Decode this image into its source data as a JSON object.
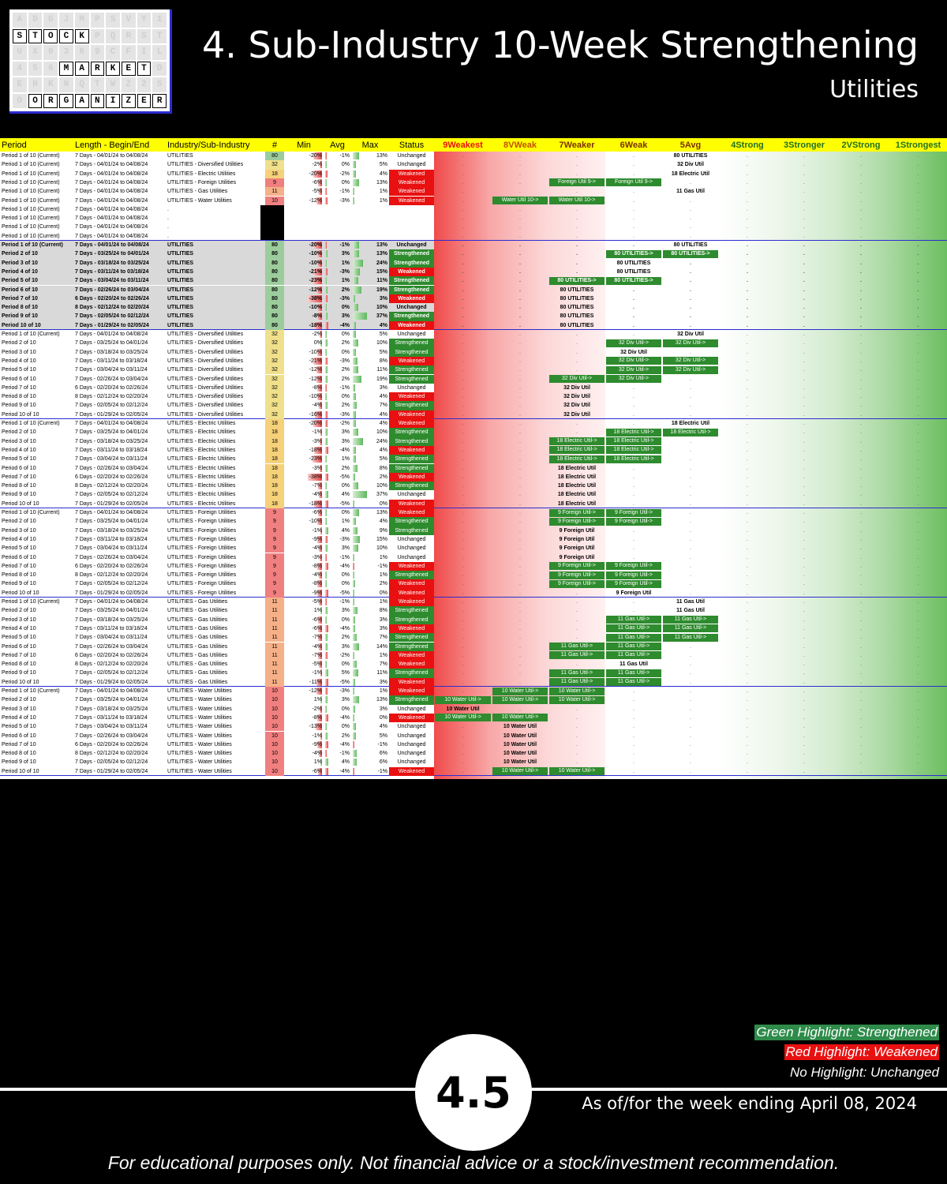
{
  "logo": {
    "words": [
      "STOCK",
      "MARKET",
      "ORGANIZER"
    ]
  },
  "header": {
    "title": "4. Sub-Industry 10-Week Strengthening",
    "subtitle": "Utilities"
  },
  "table": {
    "columns": [
      "Period",
      "Length - Begin/End",
      "Industry/Sub-Industry",
      "#",
      "Min",
      "Avg",
      "Max",
      "Status",
      "9Weakest",
      "8VWeak",
      "7Weaker",
      "6Weak",
      "5Avg",
      "4Strong",
      "3Stronger",
      "2VStrong",
      "1Strongest"
    ],
    "summary_rows": [
      [
        "Period 1 of 10 (Current)",
        "7 Days - 04/01/24 to 04/08/24",
        "UTILITIES",
        "80",
        "-20%",
        "-1%",
        "13%",
        "Unchanged"
      ],
      [
        "Period 1 of 10 (Current)",
        "7 Days - 04/01/24 to 04/08/24",
        "UTILITIES - Diversified Utilities",
        "32",
        "-2%",
        "0%",
        "5%",
        "Unchanged"
      ],
      [
        "Period 1 of 10 (Current)",
        "7 Days - 04/01/24 to 04/08/24",
        "UTILITIES - Electric Utilities",
        "18",
        "-20%",
        "-2%",
        "4%",
        "Weakened"
      ],
      [
        "Period 1 of 10 (Current)",
        "7 Days - 04/01/24 to 04/08/24",
        "UTILITIES - Foreign Utilities",
        "9",
        "-6%",
        "0%",
        "13%",
        "Weakened"
      ],
      [
        "Period 1 of 10 (Current)",
        "7 Days - 04/01/24 to 04/08/24",
        "UTILITIES - Gas Utilities",
        "11",
        "-5%",
        "-1%",
        "1%",
        "Weakened"
      ],
      [
        "Period 1 of 10 (Current)",
        "7 Days - 04/01/24 to 04/08/24",
        "UTILITIES - Water Utilities",
        "10",
        "-12%",
        "-3%",
        "1%",
        "Weakened"
      ]
    ],
    "empty_rows_label": [
      "Period 1 of 10 (Current)",
      "7 Days - 04/01/24 to 04/08/24",
      "."
    ],
    "groups": [
      {
        "name": "UTILITIES",
        "count": "80",
        "tag_label": "80 UTILITIES",
        "rows": [
          [
            "Period 1 of 10 (Current)",
            "7 Days - 04/01/24 to 04/08/24",
            "-20%",
            "-1%",
            "13%",
            "Unchanged"
          ],
          [
            "Period 2 of 10",
            "7 Days - 03/25/24 to 04/01/24",
            "-10%",
            "3%",
            "13%",
            "Strengthened"
          ],
          [
            "Period 3 of 10",
            "7 Days - 03/18/24 to 03/25/24",
            "-10%",
            "1%",
            "24%",
            "Strengthened"
          ],
          [
            "Period 4 of 10",
            "7 Days - 03/11/24 to 03/18/24",
            "-21%",
            "-3%",
            "15%",
            "Weakened"
          ],
          [
            "Period 5 of 10",
            "7 Days - 03/04/24 to 03/11/24",
            "-23%",
            "1%",
            "11%",
            "Strengthened"
          ],
          [
            "Period 6 of 10",
            "7 Days - 02/26/24 to 03/04/24",
            "-12%",
            "2%",
            "19%",
            "Strengthened"
          ],
          [
            "Period 7 of 10",
            "6 Days - 02/20/24 to 02/26/24",
            "-38%",
            "-3%",
            "3%",
            "Weakened"
          ],
          [
            "Period 8 of 10",
            "8 Days - 02/12/24 to 02/20/24",
            "-10%",
            "0%",
            "10%",
            "Unchanged"
          ],
          [
            "Period 9 of 10",
            "7 Days - 02/05/24 to 02/12/24",
            "-8%",
            "3%",
            "37%",
            "Strengthened"
          ],
          [
            "Period 10 of 10",
            "7 Days - 01/29/24 to 02/05/24",
            "-18%",
            "-4%",
            "4%",
            "Weakened"
          ]
        ]
      },
      {
        "name": "UTILITIES - Diversified Utilities",
        "count": "32",
        "tag_label": "32 Div Util",
        "rows": [
          [
            "Period 1 of 10 (Current)",
            "7 Days - 04/01/24 to 04/08/24",
            "-2%",
            "0%",
            "5%",
            "Unchanged"
          ],
          [
            "Period 2 of 10",
            "7 Days - 03/25/24 to 04/01/24",
            "0%",
            "2%",
            "10%",
            "Strengthened"
          ],
          [
            "Period 3 of 10",
            "7 Days - 03/18/24 to 03/25/24",
            "-10%",
            "0%",
            "5%",
            "Strengthened"
          ],
          [
            "Period 4 of 10",
            "7 Days - 03/11/24 to 03/18/24",
            "-21%",
            "-3%",
            "8%",
            "Weakened"
          ],
          [
            "Period 5 of 10",
            "7 Days - 03/04/24 to 03/11/24",
            "-12%",
            "2%",
            "11%",
            "Strengthened"
          ],
          [
            "Period 6 of 10",
            "7 Days - 02/26/24 to 03/04/24",
            "-12%",
            "2%",
            "19%",
            "Strengthened"
          ],
          [
            "Period 7 of 10",
            "6 Days - 02/20/24 to 02/26/24",
            "-8%",
            "-1%",
            "3%",
            "Unchanged"
          ],
          [
            "Period 8 of 10",
            "8 Days - 02/12/24 to 02/20/24",
            "-10%",
            "0%",
            "4%",
            "Weakened"
          ],
          [
            "Period 9 of 10",
            "7 Days - 02/05/24 to 02/12/24",
            "-4%",
            "2%",
            "7%",
            "Strengthened"
          ],
          [
            "Period 10 of 10",
            "7 Days - 01/29/24 to 02/05/24",
            "-16%",
            "-3%",
            "4%",
            "Weakened"
          ]
        ]
      },
      {
        "name": "UTILITIES - Electric Utilities",
        "count": "18",
        "tag_label": "18 Electric Util",
        "rows": [
          [
            "Period 1 of 10 (Current)",
            "7 Days - 04/01/24 to 04/08/24",
            "-20%",
            "-2%",
            "4%",
            "Weakened"
          ],
          [
            "Period 2 of 10",
            "7 Days - 03/25/24 to 04/01/24",
            "-1%",
            "3%",
            "10%",
            "Strengthened"
          ],
          [
            "Period 3 of 10",
            "7 Days - 03/18/24 to 03/25/24",
            "-3%",
            "3%",
            "24%",
            "Strengthened"
          ],
          [
            "Period 4 of 10",
            "7 Days - 03/11/24 to 03/18/24",
            "-18%",
            "-4%",
            "4%",
            "Weakened"
          ],
          [
            "Period 5 of 10",
            "7 Days - 03/04/24 to 03/11/24",
            "-23%",
            "1%",
            "5%",
            "Strengthened"
          ],
          [
            "Period 6 of 10",
            "7 Days - 02/26/24 to 03/04/24",
            "-3%",
            "2%",
            "8%",
            "Strengthened"
          ],
          [
            "Period 7 of 10",
            "6 Days - 02/20/24 to 02/26/24",
            "-38%",
            "-5%",
            "2%",
            "Weakened"
          ],
          [
            "Period 8 of 10",
            "8 Days - 02/12/24 to 02/20/24",
            "-7%",
            "0%",
            "10%",
            "Strengthened"
          ],
          [
            "Period 9 of 10",
            "7 Days - 02/05/24 to 02/12/24",
            "-4%",
            "4%",
            "37%",
            "Unchanged"
          ],
          [
            "Period 10 of 10",
            "7 Days - 01/29/24 to 02/05/24",
            "-18%",
            "-5%",
            "0%",
            "Weakened"
          ]
        ]
      },
      {
        "name": "UTILITIES - Foreign Utilities",
        "count": "9",
        "tag_label": "9 Foreign Util",
        "rows": [
          [
            "Period 1 of 10 (Current)",
            "7 Days - 04/01/24 to 04/08/24",
            "-6%",
            "0%",
            "13%",
            "Weakened"
          ],
          [
            "Period 2 of 10",
            "7 Days - 03/25/24 to 04/01/24",
            "-10%",
            "1%",
            "4%",
            "Strengthened"
          ],
          [
            "Period 3 of 10",
            "7 Days - 03/18/24 to 03/25/24",
            "-1%",
            "4%",
            "9%",
            "Strengthened"
          ],
          [
            "Period 4 of 10",
            "7 Days - 03/11/24 to 03/18/24",
            "-9%",
            "-3%",
            "15%",
            "Unchanged"
          ],
          [
            "Period 5 of 10",
            "7 Days - 03/04/24 to 03/11/24",
            "-4%",
            "3%",
            "10%",
            "Unchanged"
          ],
          [
            "Period 6 of 10",
            "7 Days - 02/26/24 to 03/04/24",
            "-3%",
            "-1%",
            "1%",
            "Unchanged"
          ],
          [
            "Period 7 of 10",
            "6 Days - 02/20/24 to 02/26/24",
            "-8%",
            "-4%",
            "-1%",
            "Weakened"
          ],
          [
            "Period 8 of 10",
            "8 Days - 02/12/24 to 02/20/24",
            "-4%",
            "0%",
            "1%",
            "Strengthened"
          ],
          [
            "Period 9 of 10",
            "7 Days - 02/05/24 to 02/12/24",
            "-8%",
            "0%",
            "2%",
            "Weakened"
          ],
          [
            "Period 10 of 10",
            "7 Days - 01/29/24 to 02/05/24",
            "-9%",
            "-5%",
            "0%",
            "Weakened"
          ]
        ]
      },
      {
        "name": "UTILITIES - Gas Utilities",
        "count": "11",
        "tag_label": "11 Gas Util",
        "rows": [
          [
            "Period 1 of 10 (Current)",
            "7 Days - 04/01/24 to 04/08/24",
            "-5%",
            "-1%",
            "1%",
            "Weakened"
          ],
          [
            "Period 2 of 10",
            "7 Days - 03/25/24 to 04/01/24",
            "1%",
            "3%",
            "8%",
            "Strengthened"
          ],
          [
            "Period 3 of 10",
            "7 Days - 03/18/24 to 03/25/24",
            "-6%",
            "0%",
            "3%",
            "Strengthened"
          ],
          [
            "Period 4 of 10",
            "7 Days - 03/11/24 to 03/18/24",
            "-6%",
            "-4%",
            "3%",
            "Weakened"
          ],
          [
            "Period 5 of 10",
            "7 Days - 03/04/24 to 03/11/24",
            "-7%",
            "2%",
            "7%",
            "Strengthened"
          ],
          [
            "Period 6 of 10",
            "7 Days - 02/26/24 to 03/04/24",
            "-4%",
            "3%",
            "14%",
            "Strengthened"
          ],
          [
            "Period 7 of 10",
            "6 Days - 02/20/24 to 02/26/24",
            "-7%",
            "-2%",
            "1%",
            "Weakened"
          ],
          [
            "Period 8 of 10",
            "8 Days - 02/12/24 to 02/20/24",
            "-5%",
            "0%",
            "7%",
            "Weakened"
          ],
          [
            "Period 9 of 10",
            "7 Days - 02/05/24 to 02/12/24",
            "-1%",
            "5%",
            "11%",
            "Strengthened"
          ],
          [
            "Period 10 of 10",
            "7 Days - 01/29/24 to 02/05/24",
            "-11%",
            "-5%",
            "3%",
            "Weakened"
          ]
        ]
      },
      {
        "name": "UTILITIES - Water Utilities",
        "count": "10",
        "tag_label": "10 Water Util",
        "rows": [
          [
            "Period 1 of 10 (Current)",
            "7 Days - 04/01/24 to 04/08/24",
            "-12%",
            "-3%",
            "1%",
            "Weakened"
          ],
          [
            "Period 2 of 10",
            "7 Days - 03/25/24 to 04/01/24",
            "1%",
            "3%",
            "13%",
            "Strengthened"
          ],
          [
            "Period 3 of 10",
            "7 Days - 03/18/24 to 03/25/24",
            "-2%",
            "0%",
            "3%",
            "Unchanged"
          ],
          [
            "Period 4 of 10",
            "7 Days - 03/11/24 to 03/18/24",
            "-8%",
            "-4%",
            "0%",
            "Weakened"
          ],
          [
            "Period 5 of 10",
            "7 Days - 03/04/24 to 03/11/24",
            "-13%",
            "0%",
            "4%",
            "Unchanged"
          ],
          [
            "Period 6 of 10",
            "7 Days - 02/26/24 to 03/04/24",
            "-1%",
            "2%",
            "5%",
            "Unchanged"
          ],
          [
            "Period 7 of 10",
            "6 Days - 02/20/24 to 02/26/24",
            "-9%",
            "-4%",
            "-1%",
            "Unchanged"
          ],
          [
            "Period 8 of 10",
            "8 Days - 02/12/24 to 02/20/24",
            "-4%",
            "-1%",
            "6%",
            "Unchanged"
          ],
          [
            "Period 9 of 10",
            "7 Days - 02/05/24 to 02/12/24",
            "1%",
            "4%",
            "6%",
            "Unchanged"
          ],
          [
            "Period 10 of 10",
            "7 Days - 01/29/24 to 02/05/24",
            "-6%",
            "-4%",
            "-1%",
            "Weakened"
          ]
        ]
      }
    ],
    "summary_level_positions": [
      {
        "from": 5,
        "to": 5
      },
      {
        "from": 5,
        "to": 5
      },
      {
        "from": 5,
        "to": 5
      },
      {
        "from": 7,
        "to": 6
      },
      {
        "from": 5,
        "to": 5
      },
      {
        "from": 8,
        "to": 7
      }
    ],
    "summary_tag_labels": [
      "80 UTILITIES",
      "32 Div Util",
      "18 Electric Util",
      "<-Foreign Util 9",
      "11 Gas Util",
      "<-Water Util 10"
    ],
    "level_positions": [
      [
        [
          5,
          5
        ],
        [
          6,
          5
        ],
        [
          6,
          6
        ],
        [
          6,
          6
        ],
        [
          7,
          6
        ],
        [
          7,
          7
        ],
        [
          7,
          7
        ],
        [
          7,
          7
        ],
        [
          7,
          7
        ],
        [
          7,
          7
        ]
      ],
      [
        [
          5,
          5
        ],
        [
          6,
          5
        ],
        [
          6,
          6
        ],
        [
          6,
          5
        ],
        [
          6,
          5
        ],
        [
          7,
          6
        ],
        [
          7,
          7
        ],
        [
          7,
          7
        ],
        [
          7,
          7
        ],
        [
          7,
          7
        ]
      ],
      [
        [
          5,
          5
        ],
        [
          6,
          5
        ],
        [
          7,
          6
        ],
        [
          7,
          6
        ],
        [
          7,
          6
        ],
        [
          7,
          7
        ],
        [
          7,
          7
        ],
        [
          7,
          7
        ],
        [
          7,
          7
        ],
        [
          7,
          7
        ]
      ],
      [
        [
          7,
          6
        ],
        [
          7,
          6
        ],
        [
          7,
          7
        ],
        [
          7,
          7
        ],
        [
          7,
          7
        ],
        [
          7,
          7
        ],
        [
          7,
          6
        ],
        [
          7,
          6
        ],
        [
          7,
          6
        ],
        [
          6,
          6
        ]
      ],
      [
        [
          5,
          5
        ],
        [
          5,
          5
        ],
        [
          6,
          5
        ],
        [
          6,
          5
        ],
        [
          6,
          5
        ],
        [
          7,
          6
        ],
        [
          7,
          6
        ],
        [
          6,
          6
        ],
        [
          7,
          6
        ],
        [
          7,
          6
        ]
      ],
      [
        [
          8,
          7
        ],
        [
          9,
          7
        ],
        [
          9,
          9
        ],
        [
          9,
          8
        ],
        [
          8,
          8
        ],
        [
          8,
          8
        ],
        [
          8,
          8
        ],
        [
          8,
          8
        ],
        [
          8,
          8
        ],
        [
          8,
          7
        ]
      ]
    ]
  },
  "legend": {
    "green": "Green Highlight: Strengthened",
    "red": "Red Highlight: Weakened",
    "none": "No Highlight: Unchanged"
  },
  "footer": {
    "page_number": "4.5",
    "as_of": "As of/for the week ending April 08, 2024",
    "disclaimer": "For educational purposes only. Not financial advice or a stock/investment recommendation."
  },
  "colors": {
    "strengthened": "#2e8b2e",
    "weakened": "#e81010",
    "header_bg": "#ffff00",
    "border": "#2b2bd0"
  }
}
